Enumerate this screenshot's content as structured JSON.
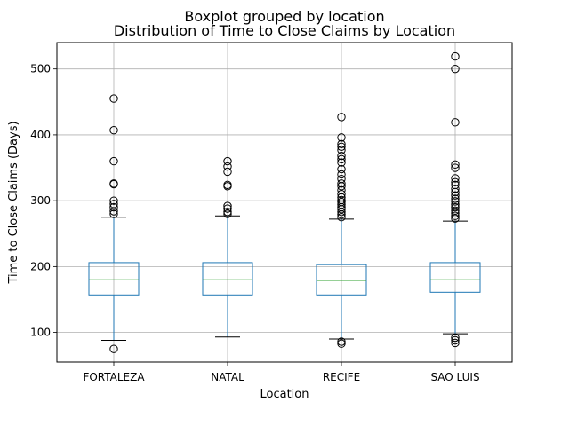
{
  "chart_data": {
    "type": "boxplot",
    "suptitle": "Boxplot grouped by location",
    "title": "Distribution of Time to Close Claims by Location",
    "xlabel": "Location",
    "ylabel": "Time to Close Claims (Days)",
    "ylim": [
      55,
      540
    ],
    "yticks": [
      100,
      200,
      300,
      400,
      500
    ],
    "grid": true,
    "categories": [
      "FORTALEZA",
      "NATAL",
      "RECIFE",
      "SAO LUIS"
    ],
    "boxes": [
      {
        "whisker_low": 88,
        "q1": 157,
        "median": 180,
        "q3": 206,
        "whisker_high": 275,
        "outliers": [
          75,
          280,
          284,
          290,
          295,
          300,
          325,
          326,
          360,
          407,
          455
        ]
      },
      {
        "whisker_low": 93,
        "q1": 157,
        "median": 180,
        "q3": 206,
        "whisker_high": 277,
        "outliers": [
          280,
          283,
          288,
          292,
          322,
          324,
          344,
          352,
          360
        ]
      },
      {
        "whisker_low": 90,
        "q1": 157,
        "median": 179,
        "q3": 203,
        "whisker_high": 272,
        "outliers": [
          83,
          86,
          275,
          279,
          283,
          287,
          290,
          294,
          298,
          301,
          305,
          310,
          316,
          322,
          326,
          333,
          340,
          348,
          358,
          363,
          368,
          377,
          382,
          386,
          396,
          427
        ]
      },
      {
        "whisker_low": 98,
        "q1": 161,
        "median": 180,
        "q3": 206,
        "whisker_high": 269,
        "outliers": [
          84,
          88,
          92,
          273,
          277,
          281,
          285,
          290,
          294,
          299,
          303,
          308,
          313,
          318,
          324,
          328,
          334,
          350,
          355,
          419,
          500,
          519
        ]
      }
    ],
    "colors": {
      "box": "#1f77b4",
      "median": "#2ca02c",
      "grid": "#b0b0b0"
    }
  }
}
